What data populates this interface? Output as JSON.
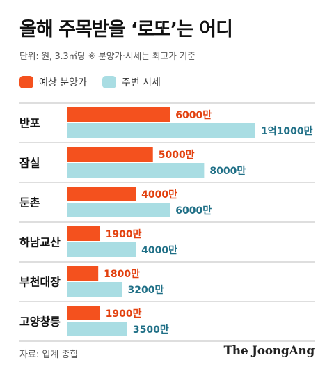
{
  "title": "올해 주목받을 ‘로또’는 어디",
  "unit_note": "단위: 원, 3.3㎡당  ※ 분양가·시세는 최고가 기준",
  "legend": [
    {
      "label": "예상 분양가",
      "color": "#f4511e"
    },
    {
      "label": "주변 시세",
      "color": "#a9dde3"
    }
  ],
  "source": "자료: 업계 종합",
  "brand": "The JoongAng",
  "colors": {
    "presale_bar": "#f4511e",
    "presale_text": "#e2400e",
    "market_bar": "#a9dde3",
    "market_text": "#1f6f86",
    "divider": "#bdbdbd"
  },
  "chart_data": {
    "type": "bar",
    "orientation": "horizontal",
    "unit": "원/3.3㎡",
    "categories": [
      "반포",
      "잠실",
      "둔촌",
      "하남교산",
      "부천대장",
      "고양창릉"
    ],
    "series": [
      {
        "name": "예상 분양가",
        "values": [
          60000000,
          50000000,
          40000000,
          19000000,
          18000000,
          19000000
        ],
        "labels": [
          "6000만",
          "5000만",
          "4000만",
          "1900만",
          "1800만",
          "1900만"
        ]
      },
      {
        "name": "주변 시세",
        "values": [
          110000000,
          80000000,
          60000000,
          40000000,
          32000000,
          35000000
        ],
        "labels": [
          "1억1000만",
          "8000만",
          "6000만",
          "4000만",
          "3200만",
          "3500만"
        ]
      }
    ],
    "xlim": [
      0,
      110000000
    ],
    "grid": false,
    "legend_position": "top-left"
  }
}
